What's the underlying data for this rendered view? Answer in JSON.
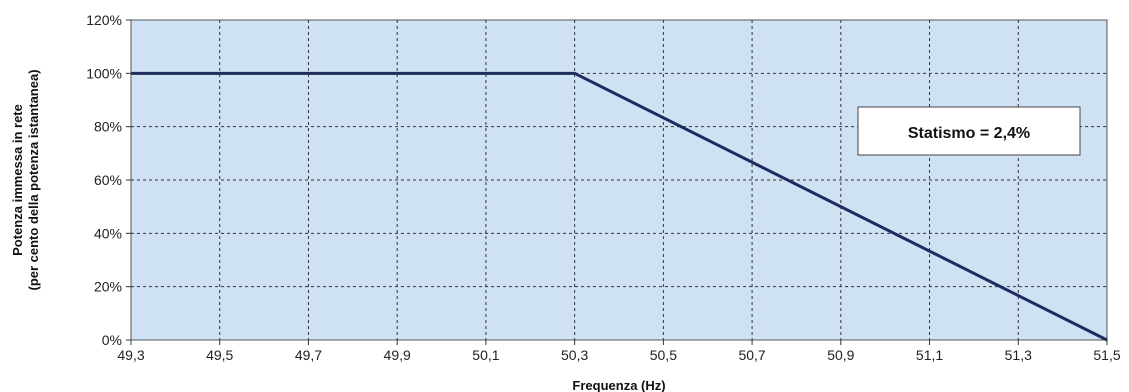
{
  "chart_data": {
    "type": "line",
    "title": "",
    "xlabel": "Frequenza (Hz)",
    "ylabel_line1": "Potenza immessa in rete",
    "ylabel_line2": "(per cento della potenza istantanea)",
    "x_ticks": [
      "49,3",
      "49,5",
      "49,7",
      "49,9",
      "50,1",
      "50,3",
      "50,5",
      "50,7",
      "50,9",
      "51,1",
      "51,3",
      "51,5"
    ],
    "x_tick_values": [
      49.3,
      49.5,
      49.7,
      49.9,
      50.1,
      50.3,
      50.5,
      50.7,
      50.9,
      51.1,
      51.3,
      51.5
    ],
    "y_ticks": [
      "0%",
      "20%",
      "40%",
      "60%",
      "80%",
      "100%",
      "120%"
    ],
    "y_tick_values": [
      0,
      20,
      40,
      60,
      80,
      100,
      120
    ],
    "xlim": [
      49.3,
      51.5
    ],
    "ylim": [
      0,
      120
    ],
    "grid": true,
    "series": [
      {
        "x": [
          49.3,
          50.3,
          51.5
        ],
        "y": [
          100,
          100,
          0
        ]
      }
    ],
    "annotation": {
      "text": "Statismo = 2,4%"
    },
    "colors": {
      "plot_background": "#cfe2f3",
      "line": "#1f2d5c",
      "grid": "#333333"
    }
  }
}
